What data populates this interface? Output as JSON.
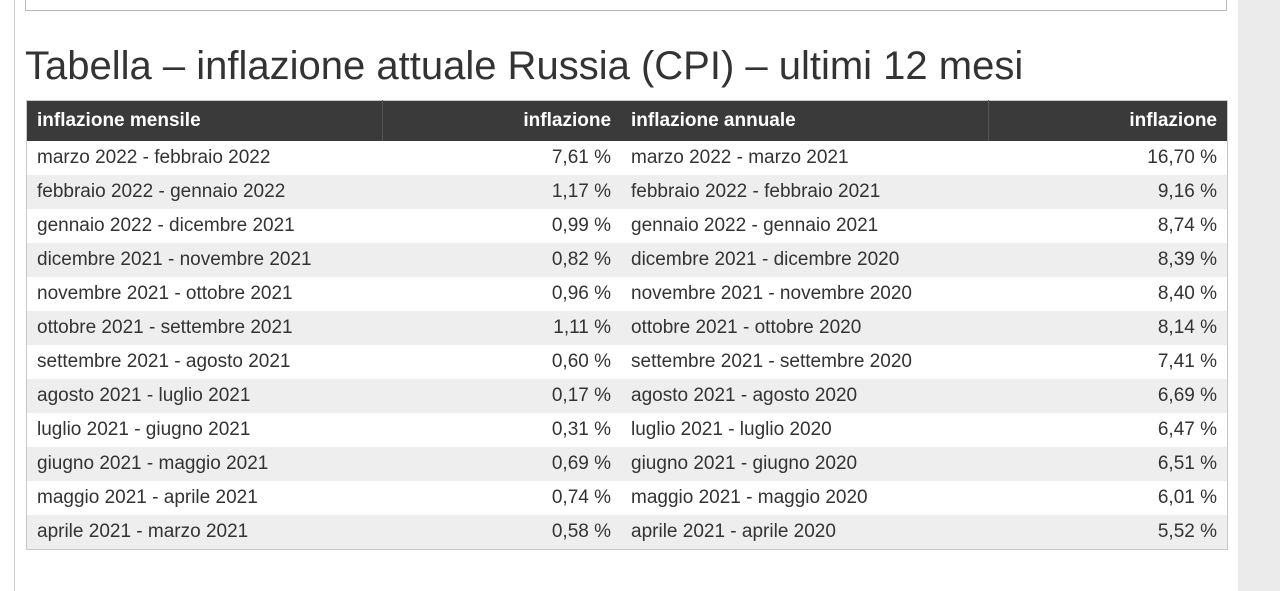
{
  "heading": "Tabella – inflazione attuale Russia (CPI) – ultimi 12 mesi",
  "table": {
    "header": [
      "inflazione mensile",
      "inflazione",
      "inflazione annuale",
      "inflazione"
    ],
    "rows": [
      [
        "marzo 2022 - febbraio 2022",
        "7,61 %",
        "marzo 2022 - marzo 2021",
        "16,70 %"
      ],
      [
        "febbraio 2022 - gennaio 2022",
        "1,17 %",
        "febbraio 2022 - febbraio 2021",
        "9,16 %"
      ],
      [
        "gennaio 2022 - dicembre 2021",
        "0,99 %",
        "gennaio 2022 - gennaio 2021",
        "8,74 %"
      ],
      [
        "dicembre 2021 - novembre 2021",
        "0,82 %",
        "dicembre 2021 - dicembre 2020",
        "8,39 %"
      ],
      [
        "novembre 2021 - ottobre 2021",
        "0,96 %",
        "novembre 2021 - novembre 2020",
        "8,40 %"
      ],
      [
        "ottobre 2021 - settembre 2021",
        "1,11 %",
        "ottobre 2021 - ottobre 2020",
        "8,14 %"
      ],
      [
        "settembre 2021 - agosto 2021",
        "0,60 %",
        "settembre 2021 - settembre 2020",
        "7,41 %"
      ],
      [
        "agosto 2021 - luglio 2021",
        "0,17 %",
        "agosto 2021 - agosto 2020",
        "6,69 %"
      ],
      [
        "luglio 2021 - giugno 2021",
        "0,31 %",
        "luglio 2021 - luglio 2020",
        "6,47 %"
      ],
      [
        "giugno 2021 - maggio 2021",
        "0,69 %",
        "giugno 2021 - giugno 2020",
        "6,51 %"
      ],
      [
        "maggio 2021 - aprile 2021",
        "0,74 %",
        "maggio 2021 - maggio 2020",
        "6,01 %"
      ],
      [
        "aprile 2021 - marzo 2021",
        "0,58 %",
        "aprile 2021 - aprile 2020",
        "5,52 %"
      ]
    ]
  }
}
